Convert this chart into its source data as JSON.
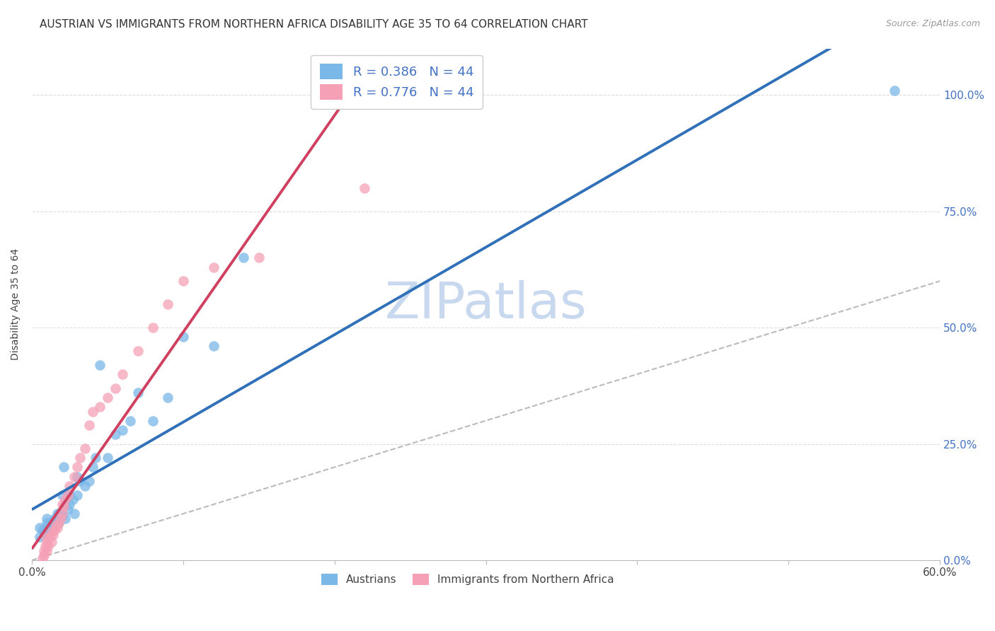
{
  "title": "AUSTRIAN VS IMMIGRANTS FROM NORTHERN AFRICA DISABILITY AGE 35 TO 64 CORRELATION CHART",
  "source_text": "Source: ZipAtlas.com",
  "ylabel": "Disability Age 35 to 64",
  "xlim": [
    0.0,
    0.6
  ],
  "ylim": [
    0.0,
    1.1
  ],
  "xticks": [
    0.0,
    0.1,
    0.2,
    0.3,
    0.4,
    0.5,
    0.6
  ],
  "xticklabels": [
    "0.0%",
    "",
    "",
    "",
    "",
    "",
    "60.0%"
  ],
  "yticks_right": [
    0.0,
    0.25,
    0.5,
    0.75,
    1.0
  ],
  "ytick_right_labels": [
    "0.0%",
    "25.0%",
    "50.0%",
    "75.0%",
    "100.0%"
  ],
  "r_blue": 0.386,
  "n_blue": 44,
  "r_pink": 0.776,
  "n_pink": 44,
  "blue_color": "#7ab8e8",
  "pink_color": "#f5a0b5",
  "blue_line_color": "#3070b8",
  "pink_line_color": "#d04060",
  "legend_blue_label": "Austrians",
  "legend_pink_label": "Immigrants from Northern Africa",
  "blue_scatter_x": [
    0.005,
    0.005,
    0.007,
    0.008,
    0.01,
    0.01,
    0.01,
    0.012,
    0.012,
    0.014,
    0.015,
    0.016,
    0.017,
    0.018,
    0.018,
    0.02,
    0.02,
    0.021,
    0.022,
    0.022,
    0.024,
    0.025,
    0.025,
    0.027,
    0.028,
    0.03,
    0.03,
    0.032,
    0.035,
    0.038,
    0.04,
    0.042,
    0.045,
    0.05,
    0.055,
    0.06,
    0.065,
    0.07,
    0.08,
    0.09,
    0.1,
    0.12,
    0.14,
    0.57
  ],
  "blue_scatter_y": [
    0.05,
    0.07,
    0.065,
    0.06,
    0.07,
    0.08,
    0.09,
    0.065,
    0.08,
    0.075,
    0.09,
    0.085,
    0.1,
    0.08,
    0.1,
    0.095,
    0.14,
    0.2,
    0.09,
    0.12,
    0.11,
    0.12,
    0.14,
    0.13,
    0.1,
    0.14,
    0.18,
    0.17,
    0.16,
    0.17,
    0.2,
    0.22,
    0.42,
    0.22,
    0.27,
    0.28,
    0.3,
    0.36,
    0.3,
    0.35,
    0.48,
    0.46,
    0.65,
    1.01
  ],
  "pink_scatter_x": [
    0.003,
    0.004,
    0.005,
    0.006,
    0.007,
    0.008,
    0.008,
    0.009,
    0.01,
    0.01,
    0.01,
    0.011,
    0.012,
    0.013,
    0.013,
    0.014,
    0.015,
    0.016,
    0.017,
    0.018,
    0.019,
    0.02,
    0.02,
    0.021,
    0.022,
    0.024,
    0.025,
    0.028,
    0.03,
    0.032,
    0.035,
    0.038,
    0.04,
    0.045,
    0.05,
    0.055,
    0.06,
    0.07,
    0.08,
    0.09,
    0.1,
    0.12,
    0.15,
    0.22
  ],
  "pink_scatter_y": [
    -0.04,
    -0.03,
    -0.02,
    -0.01,
    0.005,
    0.01,
    0.02,
    0.03,
    0.02,
    0.04,
    0.05,
    0.03,
    0.05,
    0.04,
    0.06,
    0.055,
    0.065,
    0.075,
    0.07,
    0.08,
    0.09,
    0.1,
    0.12,
    0.115,
    0.13,
    0.14,
    0.16,
    0.18,
    0.2,
    0.22,
    0.24,
    0.29,
    0.32,
    0.33,
    0.35,
    0.37,
    0.4,
    0.45,
    0.5,
    0.55,
    0.6,
    0.63,
    0.65,
    0.8
  ],
  "background_color": "#ffffff",
  "grid_color": "#dddddd",
  "title_fontsize": 11,
  "axis_label_fontsize": 10,
  "tick_fontsize": 11,
  "watermark_text": "ZIPatlas",
  "watermark_color": "#c8d8ee",
  "watermark_fontsize": 52
}
